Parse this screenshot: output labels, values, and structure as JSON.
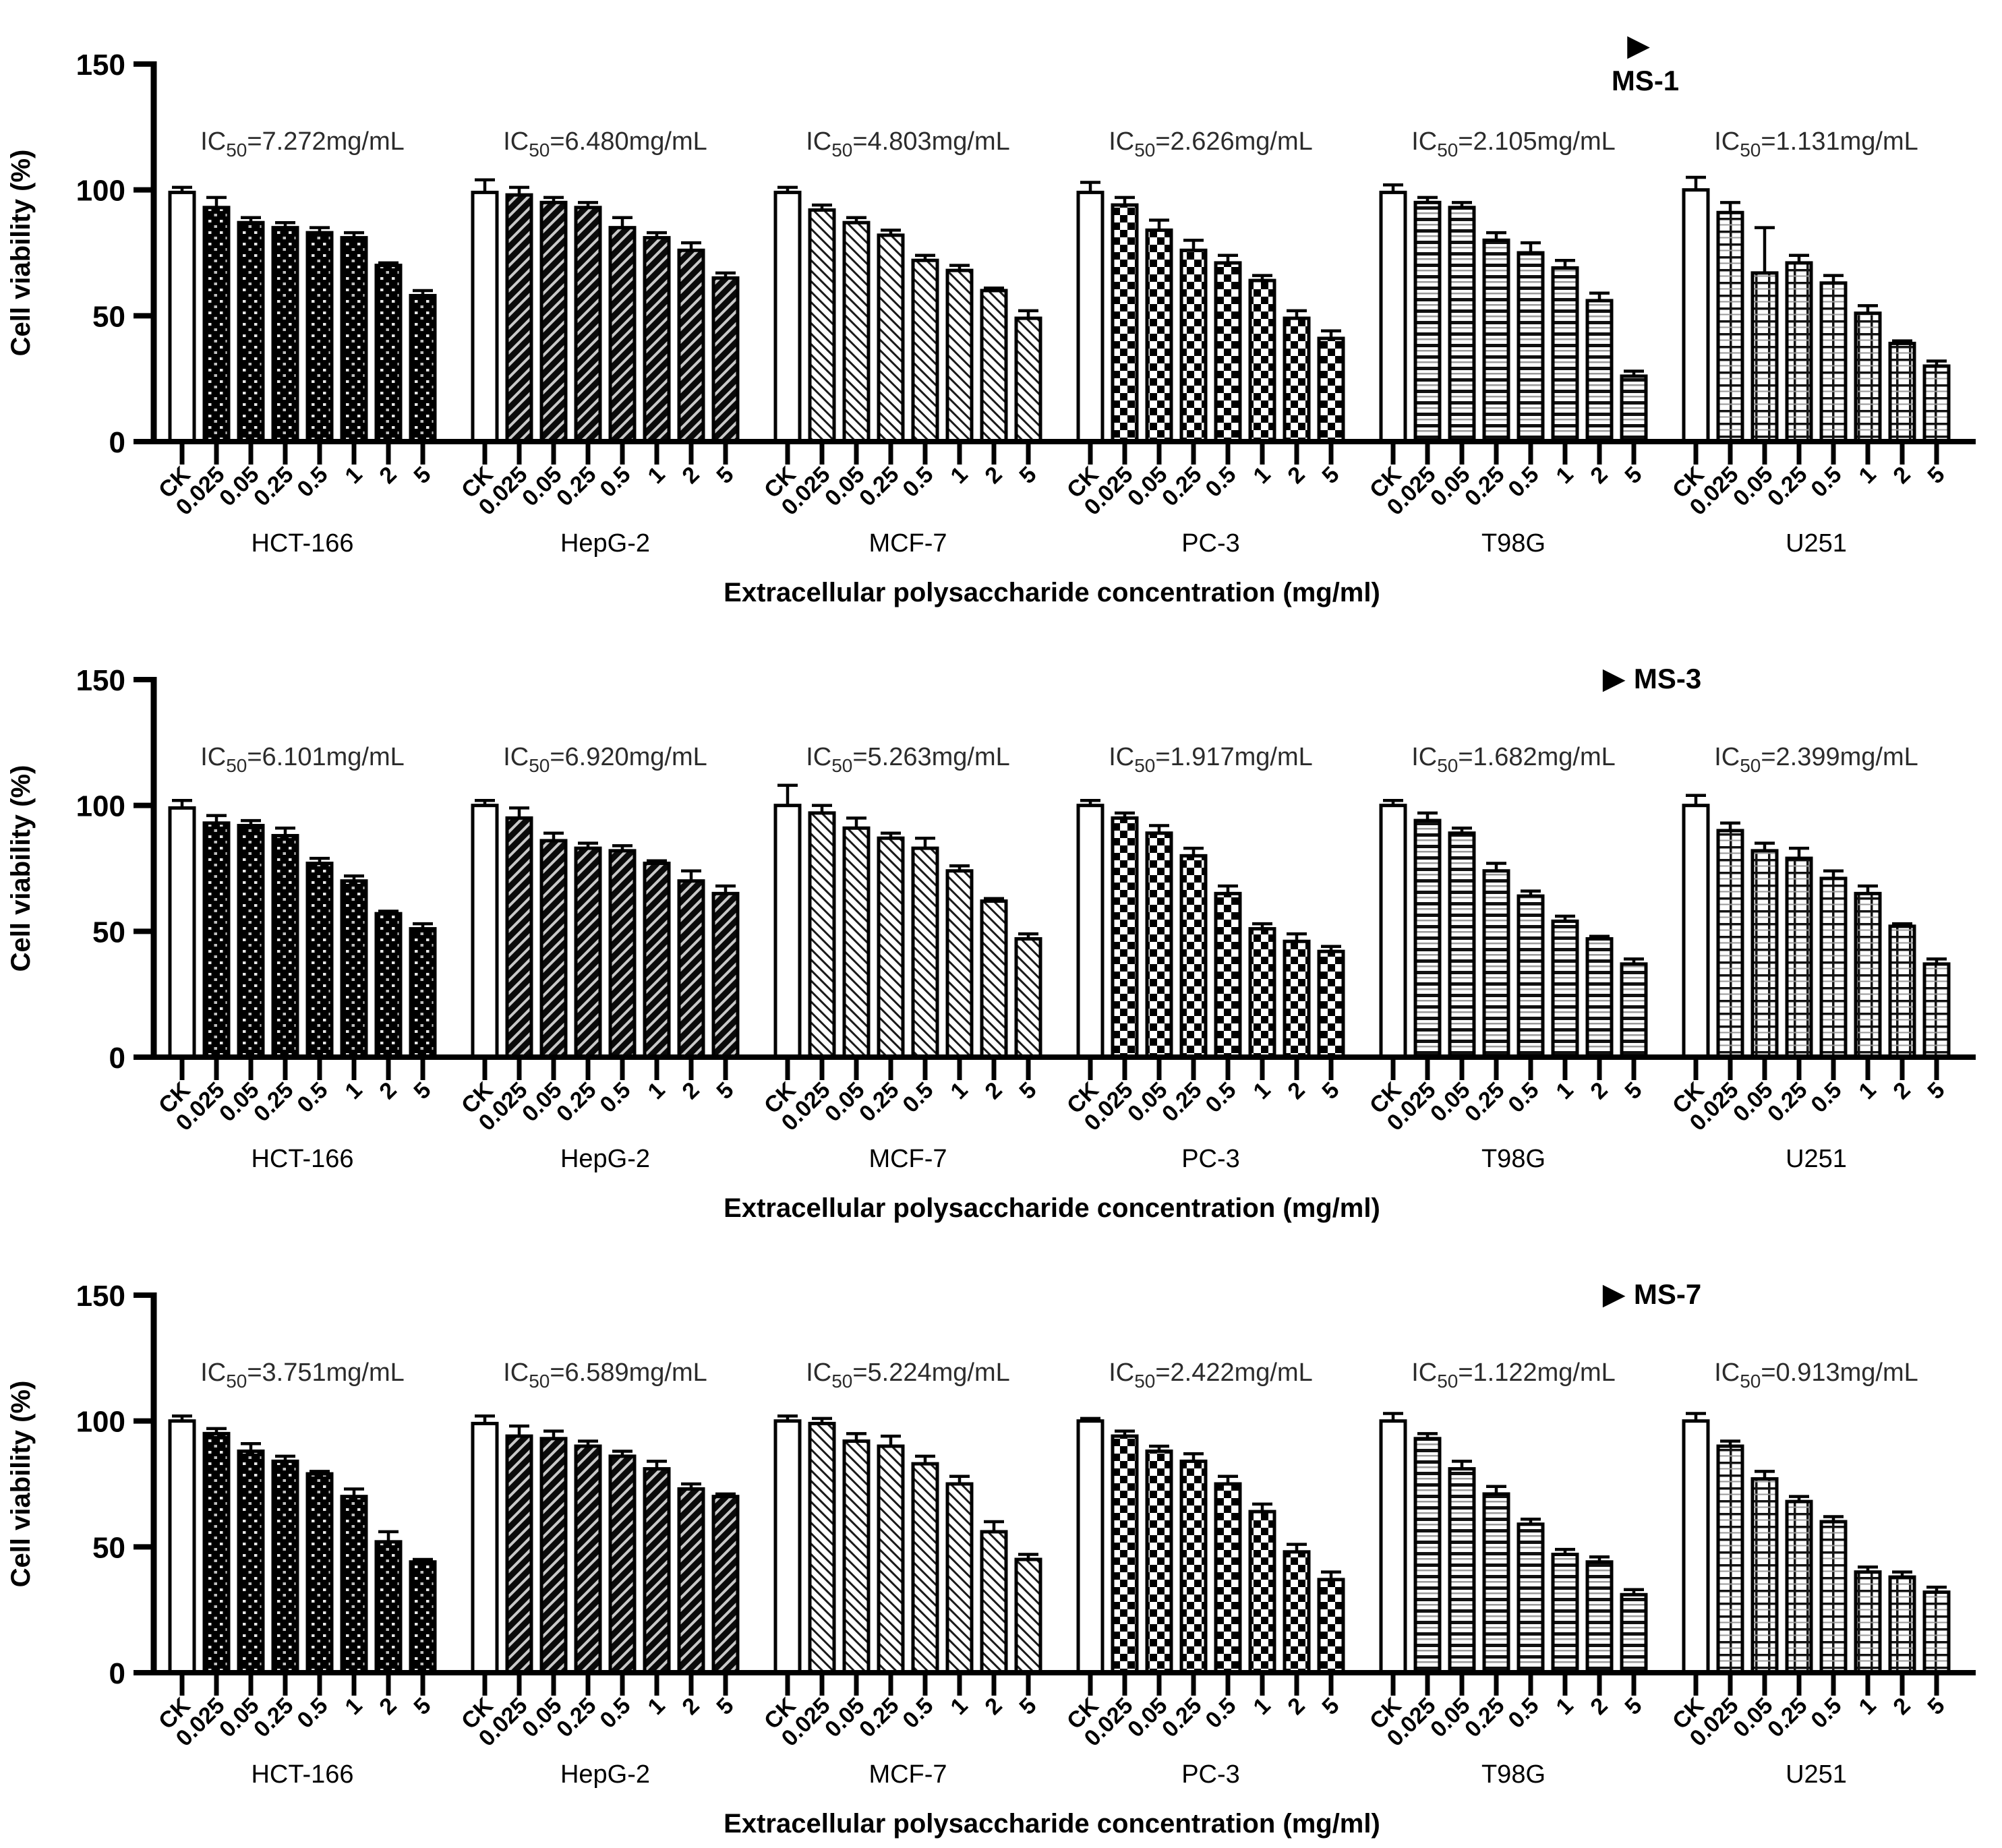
{
  "figure": {
    "y_axis_label": "Cell viability (%)",
    "x_axis_title": "Extracellular polysaccharide concentration (mg/ml)",
    "y_ticks": [
      0,
      50,
      100,
      150
    ],
    "ylim": [
      0,
      150
    ],
    "concentrations": [
      "CK",
      "0.025",
      "0.05",
      "0.25",
      "0.5",
      "1",
      "2",
      "5"
    ],
    "cell_lines": [
      "HCT-166",
      "HepG-2",
      "MCF-7",
      "PC-3",
      "T98G",
      "U251"
    ],
    "arrow_icon": "▶",
    "ic50_prefix": "IC",
    "ic50_subscript": "50",
    "ic50_unit": "mg/mL",
    "colors": {
      "ink": "#000000",
      "ic50_text": "#2b2b2b",
      "background": "#ffffff",
      "stripe_light": "#c9c9c9"
    }
  },
  "chart_data": [
    {
      "type": "bar",
      "title": "MS-1",
      "title_two_line": true,
      "ylabel": "Cell viability (%)",
      "xlabel": "Extracellular polysaccharide concentration (mg/ml)",
      "ylim": [
        0,
        150
      ],
      "y_ticks": [
        0,
        50,
        100,
        150
      ],
      "categories": [
        "CK",
        "0.025",
        "0.05",
        "0.25",
        "0.5",
        "1",
        "2",
        "5"
      ],
      "groups": [
        {
          "cell_line": "HCT-166",
          "pattern": "dots",
          "ic50_mg_ml": 7.272,
          "values": [
            99,
            93,
            87,
            85,
            83,
            81,
            70,
            58
          ],
          "errors": [
            2,
            4,
            2,
            2,
            2,
            2,
            1,
            2
          ]
        },
        {
          "cell_line": "HepG-2",
          "pattern": "diagdark",
          "ic50_mg_ml": 6.48,
          "values": [
            99,
            98,
            95,
            93,
            85,
            81,
            76,
            65
          ],
          "errors": [
            5,
            3,
            2,
            2,
            4,
            2,
            3,
            2
          ]
        },
        {
          "cell_line": "MCF-7",
          "pattern": "diaglight",
          "ic50_mg_ml": 4.803,
          "values": [
            99,
            92,
            87,
            82,
            72,
            68,
            60,
            49
          ],
          "errors": [
            2,
            2,
            2,
            2,
            2,
            2,
            1,
            3
          ]
        },
        {
          "cell_line": "PC-3",
          "pattern": "checker",
          "ic50_mg_ml": 2.626,
          "values": [
            99,
            94,
            84,
            76,
            71,
            64,
            49,
            41
          ],
          "errors": [
            4,
            3,
            4,
            4,
            3,
            2,
            3,
            3
          ]
        },
        {
          "cell_line": "T98G",
          "pattern": "hlines",
          "ic50_mg_ml": 2.105,
          "values": [
            99,
            95,
            93,
            80,
            75,
            69,
            56,
            26
          ],
          "errors": [
            3,
            2,
            2,
            3,
            4,
            3,
            3,
            2
          ]
        },
        {
          "cell_line": "U251",
          "pattern": "grid",
          "ic50_mg_ml": 1.131,
          "values": [
            100,
            91,
            67,
            71,
            63,
            51,
            39,
            30
          ],
          "errors": [
            5,
            4,
            18,
            3,
            3,
            3,
            1,
            2
          ]
        }
      ]
    },
    {
      "type": "bar",
      "title": "MS-3",
      "title_two_line": false,
      "ylabel": "Cell viability (%)",
      "xlabel": "Extracellular polysaccharide concentration (mg/ml)",
      "ylim": [
        0,
        150
      ],
      "y_ticks": [
        0,
        50,
        100,
        150
      ],
      "categories": [
        "CK",
        "0.025",
        "0.05",
        "0.25",
        "0.5",
        "1",
        "2",
        "5"
      ],
      "groups": [
        {
          "cell_line": "HCT-166",
          "pattern": "dots",
          "ic50_mg_ml": 6.101,
          "values": [
            99,
            93,
            92,
            88,
            77,
            70,
            57,
            51
          ],
          "errors": [
            3,
            3,
            2,
            3,
            2,
            2,
            1,
            2
          ]
        },
        {
          "cell_line": "HepG-2",
          "pattern": "diagdark",
          "ic50_mg_ml": 6.92,
          "values": [
            100,
            95,
            86,
            83,
            82,
            77,
            70,
            65
          ],
          "errors": [
            2,
            4,
            3,
            2,
            2,
            1,
            4,
            3
          ]
        },
        {
          "cell_line": "MCF-7",
          "pattern": "diaglight",
          "ic50_mg_ml": 5.263,
          "values": [
            100,
            97,
            91,
            87,
            83,
            74,
            62,
            47
          ],
          "errors": [
            8,
            3,
            4,
            2,
            4,
            2,
            1,
            2
          ]
        },
        {
          "cell_line": "PC-3",
          "pattern": "checker",
          "ic50_mg_ml": 1.917,
          "values": [
            100,
            95,
            89,
            80,
            65,
            51,
            46,
            42
          ],
          "errors": [
            2,
            2,
            3,
            3,
            3,
            2,
            3,
            2
          ]
        },
        {
          "cell_line": "T98G",
          "pattern": "hlines",
          "ic50_mg_ml": 1.682,
          "values": [
            100,
            94,
            89,
            74,
            64,
            54,
            47,
            37
          ],
          "errors": [
            2,
            3,
            2,
            3,
            2,
            2,
            1,
            2
          ]
        },
        {
          "cell_line": "U251",
          "pattern": "grid",
          "ic50_mg_ml": 2.399,
          "values": [
            100,
            90,
            82,
            79,
            71,
            65,
            52,
            37
          ],
          "errors": [
            4,
            3,
            3,
            4,
            3,
            3,
            1,
            2
          ]
        }
      ]
    },
    {
      "type": "bar",
      "title": "MS-7",
      "title_two_line": false,
      "ylabel": "Cell viability (%)",
      "xlabel": "Extracellular polysaccharide concentration (mg/ml)",
      "ylim": [
        0,
        150
      ],
      "y_ticks": [
        0,
        50,
        100,
        150
      ],
      "categories": [
        "CK",
        "0.025",
        "0.05",
        "0.25",
        "0.5",
        "1",
        "2",
        "5"
      ],
      "groups": [
        {
          "cell_line": "HCT-166",
          "pattern": "dots",
          "ic50_mg_ml": 3.751,
          "values": [
            100,
            95,
            88,
            84,
            79,
            70,
            52,
            44
          ],
          "errors": [
            2,
            2,
            3,
            2,
            1,
            3,
            4,
            1
          ]
        },
        {
          "cell_line": "HepG-2",
          "pattern": "diagdark",
          "ic50_mg_ml": 6.589,
          "values": [
            99,
            94,
            93,
            90,
            86,
            81,
            73,
            70
          ],
          "errors": [
            3,
            4,
            3,
            2,
            2,
            3,
            2,
            1
          ]
        },
        {
          "cell_line": "MCF-7",
          "pattern": "diaglight",
          "ic50_mg_ml": 5.224,
          "values": [
            100,
            99,
            92,
            90,
            83,
            75,
            56,
            45
          ],
          "errors": [
            2,
            2,
            3,
            4,
            3,
            3,
            4,
            2
          ]
        },
        {
          "cell_line": "PC-3",
          "pattern": "checker",
          "ic50_mg_ml": 2.422,
          "values": [
            100,
            94,
            88,
            84,
            75,
            64,
            48,
            37
          ],
          "errors": [
            1,
            2,
            2,
            3,
            3,
            3,
            3,
            3
          ]
        },
        {
          "cell_line": "T98G",
          "pattern": "hlines",
          "ic50_mg_ml": 1.122,
          "values": [
            100,
            93,
            81,
            71,
            59,
            47,
            44,
            31
          ],
          "errors": [
            3,
            2,
            3,
            3,
            2,
            2,
            2,
            2
          ]
        },
        {
          "cell_line": "U251",
          "pattern": "grid",
          "ic50_mg_ml": 0.913,
          "values": [
            100,
            90,
            77,
            68,
            60,
            40,
            38,
            32
          ],
          "errors": [
            3,
            2,
            3,
            2,
            2,
            2,
            2,
            2
          ]
        }
      ]
    }
  ]
}
